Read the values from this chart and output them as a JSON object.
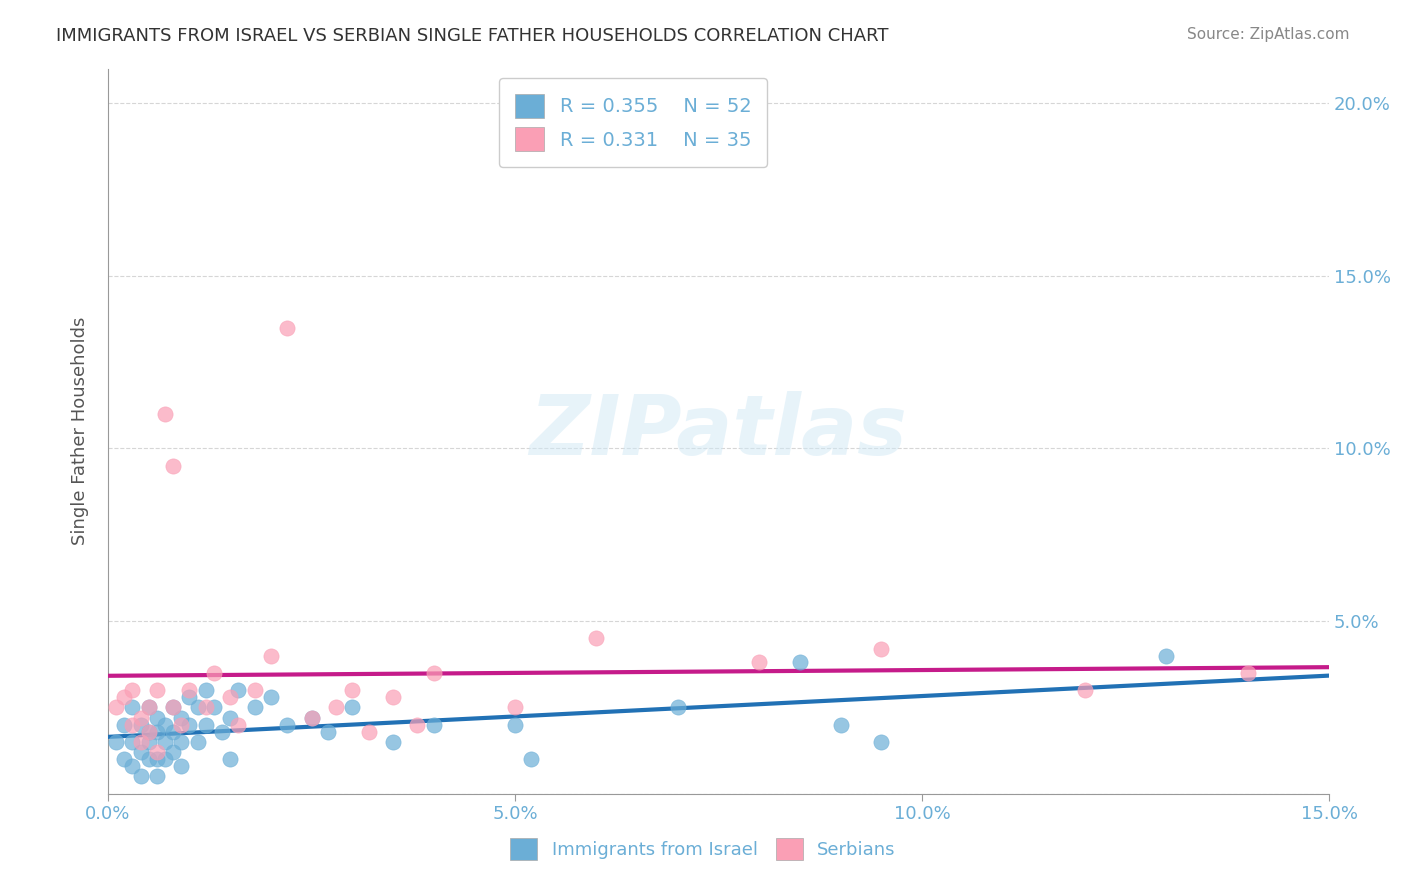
{
  "title": "IMMIGRANTS FROM ISRAEL VS SERBIAN SINGLE FATHER HOUSEHOLDS CORRELATION CHART",
  "source_text": "Source: ZipAtlas.com",
  "xlabel": "",
  "ylabel": "Single Father Households",
  "xlim": [
    0.0,
    0.15
  ],
  "ylim": [
    0.0,
    0.21
  ],
  "xticks": [
    0.0,
    0.05,
    0.1,
    0.15
  ],
  "xtick_labels": [
    "0.0%",
    "5.0%",
    "10.0%",
    "15.0%"
  ],
  "yticks": [
    0.0,
    0.05,
    0.1,
    0.15,
    0.2
  ],
  "ytick_labels": [
    "",
    "5.0%",
    "10.0%",
    "15.0%",
    "20.0%"
  ],
  "blue_color": "#6baed6",
  "pink_color": "#fa9fb5",
  "blue_line_color": "#2171b5",
  "pink_line_color": "#c51b8a",
  "title_color": "#333333",
  "axis_color": "#6baed6",
  "legend_R1": "R = 0.355",
  "legend_N1": "N = 52",
  "legend_R2": "R = 0.331",
  "legend_N2": "N = 35",
  "watermark": "ZIPatlas",
  "blue_scatter_x": [
    0.001,
    0.002,
    0.002,
    0.003,
    0.003,
    0.003,
    0.004,
    0.004,
    0.004,
    0.005,
    0.005,
    0.005,
    0.005,
    0.006,
    0.006,
    0.006,
    0.006,
    0.007,
    0.007,
    0.007,
    0.008,
    0.008,
    0.008,
    0.009,
    0.009,
    0.009,
    0.01,
    0.01,
    0.011,
    0.011,
    0.012,
    0.012,
    0.013,
    0.014,
    0.015,
    0.015,
    0.016,
    0.018,
    0.02,
    0.022,
    0.025,
    0.027,
    0.03,
    0.035,
    0.04,
    0.05,
    0.052,
    0.07,
    0.085,
    0.09,
    0.095,
    0.13
  ],
  "blue_scatter_y": [
    0.015,
    0.02,
    0.01,
    0.025,
    0.015,
    0.008,
    0.02,
    0.012,
    0.005,
    0.018,
    0.025,
    0.015,
    0.01,
    0.022,
    0.018,
    0.01,
    0.005,
    0.02,
    0.015,
    0.01,
    0.025,
    0.018,
    0.012,
    0.022,
    0.015,
    0.008,
    0.028,
    0.02,
    0.025,
    0.015,
    0.03,
    0.02,
    0.025,
    0.018,
    0.022,
    0.01,
    0.03,
    0.025,
    0.028,
    0.02,
    0.022,
    0.018,
    0.025,
    0.015,
    0.02,
    0.02,
    0.01,
    0.025,
    0.038,
    0.02,
    0.015,
    0.04
  ],
  "pink_scatter_x": [
    0.001,
    0.002,
    0.003,
    0.003,
    0.004,
    0.004,
    0.005,
    0.005,
    0.006,
    0.006,
    0.007,
    0.008,
    0.008,
    0.009,
    0.01,
    0.012,
    0.013,
    0.015,
    0.016,
    0.018,
    0.02,
    0.022,
    0.025,
    0.028,
    0.03,
    0.032,
    0.035,
    0.038,
    0.04,
    0.05,
    0.06,
    0.08,
    0.095,
    0.12,
    0.14
  ],
  "pink_scatter_y": [
    0.025,
    0.028,
    0.02,
    0.03,
    0.022,
    0.015,
    0.025,
    0.018,
    0.03,
    0.012,
    0.11,
    0.095,
    0.025,
    0.02,
    0.03,
    0.025,
    0.035,
    0.028,
    0.02,
    0.03,
    0.04,
    0.135,
    0.022,
    0.025,
    0.03,
    0.018,
    0.028,
    0.02,
    0.035,
    0.025,
    0.045,
    0.038,
    0.042,
    0.03,
    0.035
  ]
}
